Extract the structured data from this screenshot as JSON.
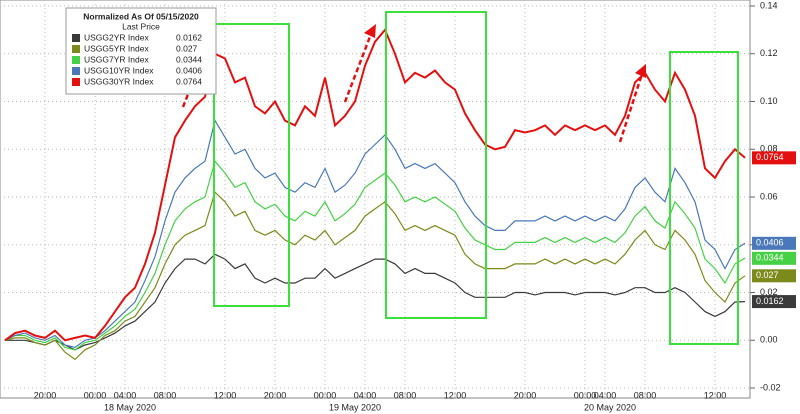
{
  "chart_data": {
    "type": "line",
    "legend_title": "Normalized As Of 05/15/2020",
    "legend_header": "Last Price",
    "categories": [
      null,
      null,
      null,
      null,
      "20:00",
      null,
      null,
      null,
      null,
      "00:00",
      null,
      null,
      "04:00",
      null,
      null,
      null,
      "08:00",
      null,
      null,
      null,
      null,
      null,
      "12:00",
      null,
      null,
      null,
      null,
      "20:00",
      null,
      null,
      null,
      null,
      "00:00",
      null,
      null,
      null,
      "04:00",
      null,
      null,
      null,
      "08:00",
      null,
      null,
      null,
      null,
      "12:00",
      null,
      null,
      null,
      null,
      null,
      null,
      "20:00",
      null,
      null,
      null,
      null,
      null,
      "00:00",
      null,
      "04:00",
      null,
      null,
      null,
      "08:00",
      null,
      null,
      null,
      null,
      null,
      null,
      "12:00",
      null,
      null,
      null
    ],
    "x_group_labels": [
      "18 May 2020",
      "19 May 2020",
      "20 May 2020"
    ],
    "ylim": [
      -0.02,
      0.14
    ],
    "yticks": [
      -0.02,
      {
        "value": 0,
        "label": "0.00"
      },
      0.02,
      0.04,
      0.06,
      0.08,
      {
        "value": 0.1,
        "label": "0.10"
      },
      0.12,
      0.14
    ],
    "grid": true,
    "series": [
      {
        "name": "USGG2YR Index",
        "color": "#3a3a3a",
        "values": [
          0,
          0,
          0,
          -0.001,
          -0.002,
          0,
          -0.002,
          -0.004,
          -0.002,
          -0.001,
          0.001,
          0.003,
          0.006,
          0.008,
          0.012,
          0.016,
          0.024,
          0.03,
          0.034,
          0.034,
          0.032,
          0.036,
          0.034,
          0.03,
          0.032,
          0.026,
          0.024,
          0.026,
          0.024,
          0.024,
          0.026,
          0.026,
          0.03,
          0.026,
          0.028,
          0.03,
          0.032,
          0.034,
          0.034,
          0.032,
          0.028,
          0.03,
          0.028,
          0.028,
          0.026,
          0.024,
          0.02,
          0.018,
          0.018,
          0.018,
          0.018,
          0.02,
          0.02,
          0.019,
          0.02,
          0.02,
          0.02,
          0.019,
          0.02,
          0.02,
          0.02,
          0.019,
          0.02,
          0.022,
          0.022,
          0.02,
          0.02,
          0.022,
          0.02,
          0.016,
          0.012,
          0.01,
          0.012,
          0.016,
          0.0162
        ]
      },
      {
        "name": "USGG5YR Index",
        "color": "#7c8a1c",
        "values": [
          0,
          0.001,
          0.001,
          -0.001,
          -0.002,
          0,
          -0.005,
          -0.008,
          -0.004,
          -0.002,
          0.002,
          0.004,
          0.008,
          0.01,
          0.016,
          0.022,
          0.032,
          0.04,
          0.044,
          0.046,
          0.048,
          0.062,
          0.058,
          0.052,
          0.054,
          0.046,
          0.044,
          0.046,
          0.042,
          0.04,
          0.044,
          0.042,
          0.046,
          0.04,
          0.043,
          0.046,
          0.052,
          0.055,
          0.058,
          0.053,
          0.046,
          0.048,
          0.046,
          0.048,
          0.046,
          0.044,
          0.036,
          0.032,
          0.03,
          0.03,
          0.03,
          0.032,
          0.032,
          0.032,
          0.034,
          0.032,
          0.034,
          0.032,
          0.034,
          0.032,
          0.034,
          0.032,
          0.036,
          0.042,
          0.046,
          0.04,
          0.038,
          0.046,
          0.042,
          0.036,
          0.025,
          0.02,
          0.016,
          0.024,
          0.027
        ]
      },
      {
        "name": "USGG7YR Index",
        "color": "#45d045",
        "values": [
          0,
          0.002,
          0.002,
          0,
          -0.001,
          0.001,
          -0.003,
          -0.004,
          -0.001,
          0,
          0.003,
          0.006,
          0.01,
          0.013,
          0.02,
          0.028,
          0.04,
          0.05,
          0.055,
          0.058,
          0.06,
          0.075,
          0.07,
          0.064,
          0.066,
          0.058,
          0.055,
          0.057,
          0.052,
          0.05,
          0.054,
          0.052,
          0.058,
          0.05,
          0.053,
          0.057,
          0.064,
          0.067,
          0.07,
          0.065,
          0.058,
          0.06,
          0.058,
          0.06,
          0.057,
          0.054,
          0.047,
          0.042,
          0.04,
          0.038,
          0.038,
          0.041,
          0.041,
          0.041,
          0.043,
          0.041,
          0.043,
          0.041,
          0.043,
          0.041,
          0.043,
          0.041,
          0.045,
          0.052,
          0.056,
          0.05,
          0.047,
          0.058,
          0.053,
          0.047,
          0.034,
          0.03,
          0.024,
          0.032,
          0.0344
        ]
      },
      {
        "name": "USGG10YR Index",
        "color": "#4a78b8",
        "values": [
          0,
          0.002,
          0.003,
          0.001,
          0,
          0.002,
          -0.002,
          -0.003,
          0,
          0.001,
          0.004,
          0.008,
          0.012,
          0.016,
          0.025,
          0.035,
          0.05,
          0.062,
          0.068,
          0.072,
          0.075,
          0.092,
          0.085,
          0.078,
          0.08,
          0.072,
          0.068,
          0.07,
          0.064,
          0.062,
          0.066,
          0.064,
          0.072,
          0.062,
          0.065,
          0.07,
          0.078,
          0.082,
          0.086,
          0.08,
          0.072,
          0.074,
          0.072,
          0.074,
          0.07,
          0.066,
          0.058,
          0.052,
          0.048,
          0.046,
          0.046,
          0.05,
          0.05,
          0.05,
          0.052,
          0.05,
          0.052,
          0.05,
          0.052,
          0.05,
          0.052,
          0.05,
          0.055,
          0.064,
          0.068,
          0.062,
          0.058,
          0.072,
          0.066,
          0.058,
          0.042,
          0.038,
          0.03,
          0.038,
          0.0406
        ]
      },
      {
        "name": "USGG30YR Index",
        "color": "#e41010",
        "values": [
          0,
          0.003,
          0.004,
          0.002,
          0.001,
          0.004,
          0,
          0.001,
          0.002,
          0.001,
          0.006,
          0.012,
          0.018,
          0.022,
          0.032,
          0.045,
          0.065,
          0.085,
          0.092,
          0.098,
          0.102,
          0.12,
          0.118,
          0.108,
          0.11,
          0.098,
          0.095,
          0.1,
          0.092,
          0.09,
          0.098,
          0.094,
          0.11,
          0.09,
          0.094,
          0.1,
          0.115,
          0.125,
          0.13,
          0.12,
          0.108,
          0.112,
          0.11,
          0.113,
          0.108,
          0.105,
          0.095,
          0.088,
          0.082,
          0.08,
          0.081,
          0.088,
          0.087,
          0.088,
          0.09,
          0.086,
          0.09,
          0.088,
          0.09,
          0.088,
          0.09,
          0.086,
          0.094,
          0.108,
          0.112,
          0.105,
          0.1,
          0.112,
          0.105,
          0.094,
          0.072,
          0.068,
          0.075,
          0.08,
          0.0764
        ]
      }
    ]
  }
}
